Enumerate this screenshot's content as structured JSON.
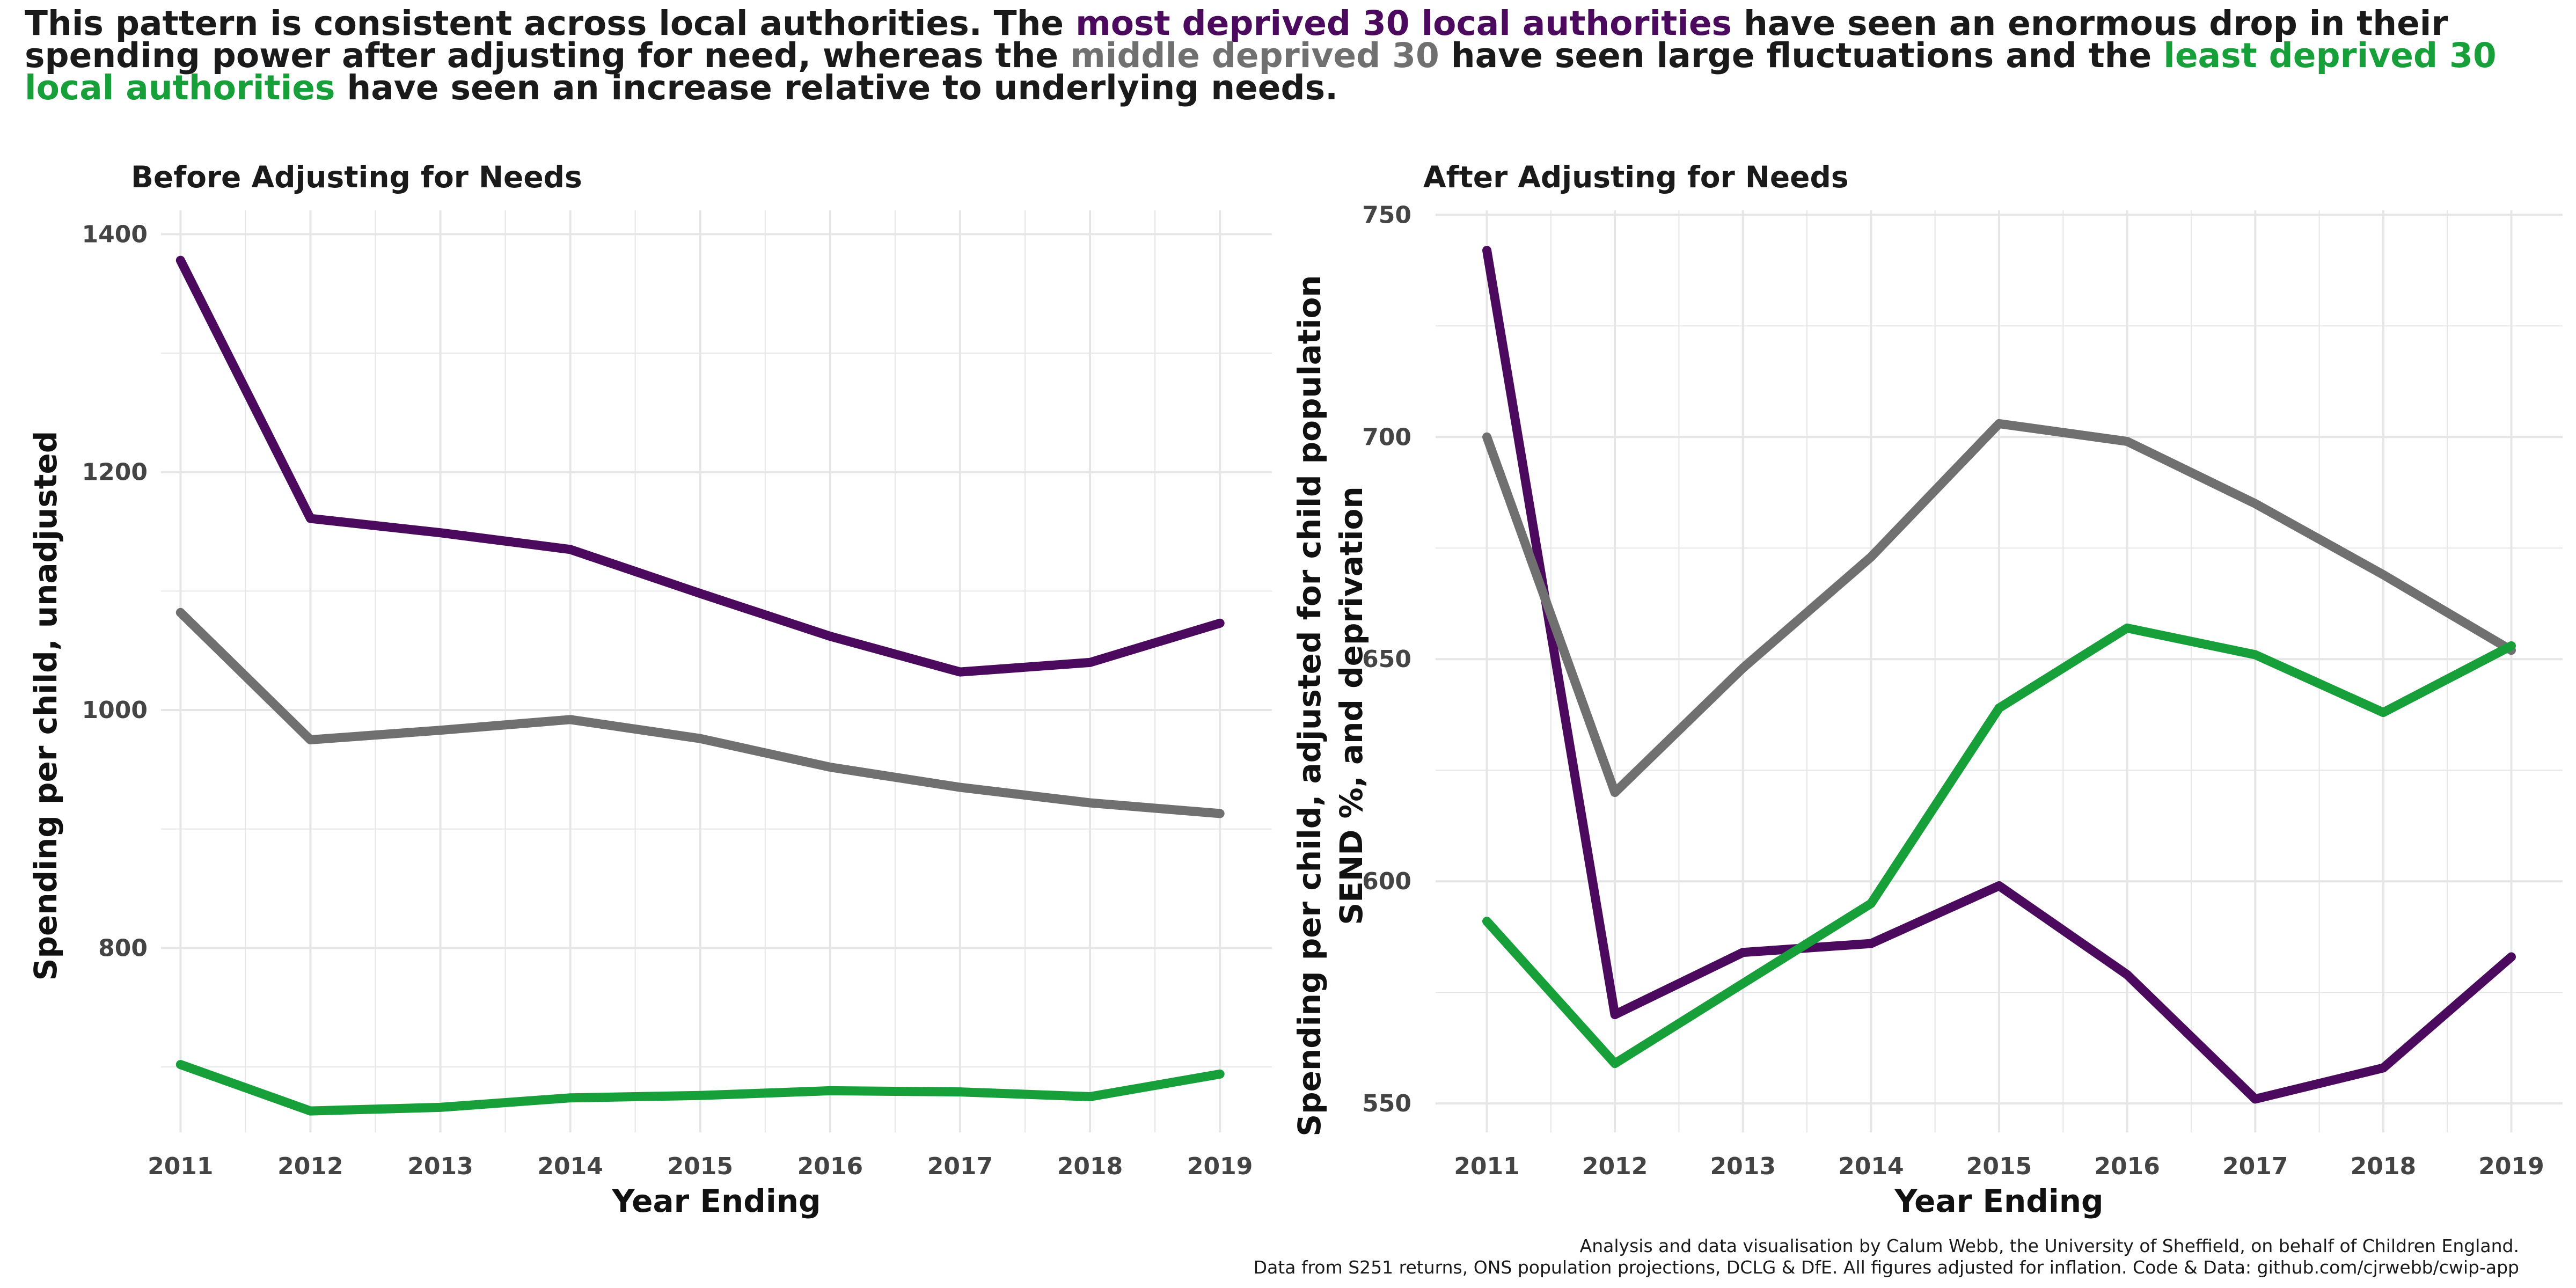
{
  "headline": {
    "part1": "This pattern is consistent across local authorities. The ",
    "most": "most deprived 30 local authorities",
    "part2": " have seen an enormous drop in their spending power after adjusting for need, whereas the ",
    "middle": "middle deprived 30",
    "part3": " have seen large fluctuations and the ",
    "least": "least deprived 30 local authorities",
    "part4": " have seen an increase relative to underlying needs."
  },
  "caption": {
    "line1": "Analysis and data visualisation by Calum Webb, the University of Sheffield, on behalf of Children England.",
    "line2": "Data from S251 returns, ONS population projections, DCLG & DfE. All figures adjusted for inflation. Code & Data: github.com/cjrwebb/cwip-app"
  },
  "colors": {
    "most": "#4B0A5E",
    "middle": "#707070",
    "least": "#17A03A",
    "grid": "#E6E6E6"
  },
  "chart_data": [
    {
      "type": "line",
      "title": "Before Adjusting for Needs",
      "xlabel": "Year Ending",
      "ylabel": "Spending per child, unadjusted",
      "x": [
        2011,
        2012,
        2013,
        2014,
        2015,
        2016,
        2017,
        2018,
        2019
      ],
      "xlim": [
        2010.85,
        2019.4
      ],
      "ylim": [
        645,
        1420
      ],
      "yticks": [
        800,
        1000,
        1200,
        1400
      ],
      "grid": true,
      "legend": "none",
      "series": [
        {
          "key": "most",
          "values": [
            1378,
            1161,
            1149,
            1135,
            1098,
            1062,
            1032,
            1040,
            1073
          ]
        },
        {
          "key": "middle",
          "values": [
            1082,
            975,
            983,
            992,
            976,
            952,
            935,
            922,
            913
          ]
        },
        {
          "key": "least",
          "values": [
            702,
            663,
            666,
            674,
            676,
            680,
            679,
            675,
            694
          ]
        }
      ]
    },
    {
      "type": "line",
      "title": "After Adjusting for Needs",
      "xlabel": "Year Ending",
      "ylabel": [
        "Spending per child, adjusted for child population",
        "SEND %, and deprivation"
      ],
      "x": [
        2011,
        2012,
        2013,
        2014,
        2015,
        2016,
        2017,
        2018,
        2019
      ],
      "xlim": [
        2010.6,
        2019.4
      ],
      "ylim": [
        543.5,
        751
      ],
      "yticks": [
        550,
        600,
        650,
        700,
        750
      ],
      "grid": true,
      "legend": "none",
      "series": [
        {
          "key": "most",
          "values": [
            742,
            570,
            584,
            586,
            599,
            579,
            551,
            558,
            583
          ]
        },
        {
          "key": "middle",
          "values": [
            700,
            620,
            648,
            673,
            703,
            699,
            685,
            669,
            652
          ]
        },
        {
          "key": "least",
          "values": [
            591,
            559,
            577,
            595,
            639,
            657,
            651,
            638,
            653
          ]
        }
      ]
    }
  ]
}
